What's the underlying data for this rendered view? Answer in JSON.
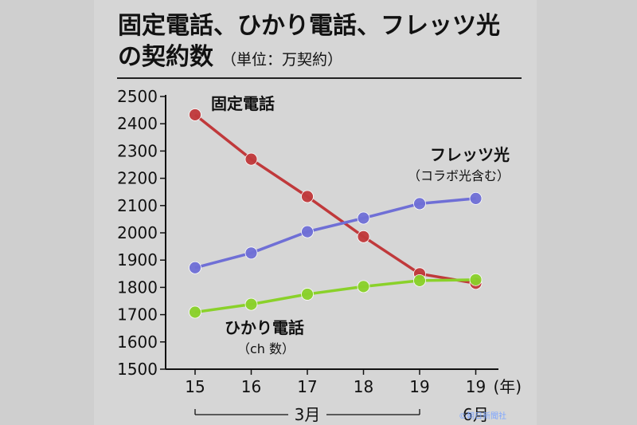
{
  "title": {
    "line1": "固定電話、ひかり電話、フレッツ光",
    "line2": "の契約数",
    "unit": "（単位：万契約）"
  },
  "chart_data": {
    "type": "line",
    "categories": [
      "15",
      "16",
      "17",
      "18",
      "19",
      "19"
    ],
    "x_unit": "(年)",
    "period_labels": [
      {
        "label": "3月",
        "from": 0,
        "to": 4
      },
      {
        "label": "6月",
        "from": 5,
        "to": 5
      }
    ],
    "ylim": [
      1500,
      2500
    ],
    "yticks": [
      1500,
      1600,
      1700,
      1800,
      1900,
      2000,
      2100,
      2200,
      2300,
      2400,
      2500
    ],
    "grid": false,
    "series": [
      {
        "name": "固定電話",
        "sub": "",
        "color": "#c0393b",
        "values": [
          2433,
          2270,
          2133,
          1986,
          1850,
          1815
        ]
      },
      {
        "name": "フレッツ光",
        "sub": "（コラボ光含む）",
        "color": "#6f6fd6",
        "values": [
          1872,
          1926,
          2004,
          2054,
          2107,
          2126
        ]
      },
      {
        "name": "ひかり電話",
        "sub": "（ch 数）",
        "color": "#8ad12a",
        "values": [
          1709,
          1738,
          1775,
          1803,
          1825,
          1828
        ]
      }
    ]
  },
  "credit": "©朝日新聞社"
}
